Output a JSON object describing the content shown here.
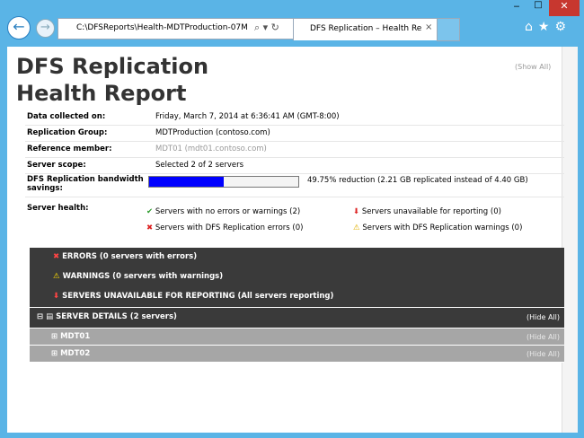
{
  "browser": {
    "address": "C:\\DFSReports\\Health-MDTProduction-07M",
    "tab": "DFS Replication – Health Re"
  },
  "report": {
    "title": "DFS Replication Health Report",
    "show_all": "(Show All)",
    "fields": [
      {
        "label": "Data collected on:",
        "value": "Friday, March 7, 2014 at 6:36:41 AM (GMT-8:00)"
      },
      {
        "label": "Replication Group:",
        "value": "MDTProduction (contoso.com)"
      },
      {
        "label": "Reference member:",
        "value": "MDT01 (mdt01.contoso.com)"
      },
      {
        "label": "Server scope:",
        "value": "Selected 2 of 2 servers"
      }
    ],
    "bandwidth": {
      "label": "DFS Replication bandwidth savings:",
      "value": 49.75,
      "text": "49.75% reduction (2.21 GB replicated instead of 4.40 GB)"
    },
    "health": {
      "label": "Server health:",
      "items": [
        "Servers with no errors or warnings (2)",
        "Servers with DFS Replication errors (0)",
        "Servers unavailable for reporting (0)",
        "Servers with DFS Replication warnings (0)"
      ]
    },
    "sections": [
      {
        "title": "ERRORS",
        "detail": "(0 servers with errors)"
      },
      {
        "title": "WARNINGS",
        "detail": "(0 servers with warnings)"
      },
      {
        "title": "SERVERS UNAVAILABLE FOR REPORTING",
        "detail": "(All servers reporting)"
      }
    ],
    "details": {
      "title": "SERVER DETAILS",
      "detail": "(2 servers)",
      "hide_all": "(Hide All)",
      "servers": [
        {
          "name": "MDT01",
          "hide_all": "(Hide All)"
        },
        {
          "name": "MDT02",
          "hide_all": "(Hide All)"
        }
      ]
    }
  }
}
